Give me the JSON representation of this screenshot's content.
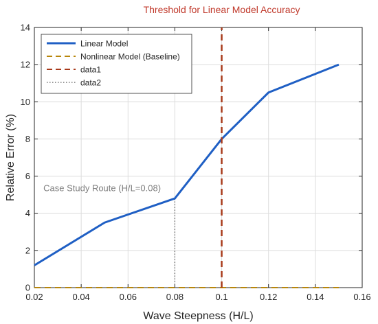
{
  "chart_data": {
    "type": "line",
    "title": "Threshold for Linear Model Accuracy",
    "xlabel": "Wave Steepness (H/L)",
    "ylabel": "Relative Error (%)",
    "xlim": [
      0.02,
      0.16
    ],
    "ylim": [
      0,
      14
    ],
    "xticks": [
      0.02,
      0.04,
      0.06,
      0.08,
      0.1,
      0.12,
      0.14,
      0.16
    ],
    "xtick_labels": [
      "0.02",
      "0.04",
      "0.06",
      "0.08",
      "0.1",
      "0.12",
      "0.14",
      "0.16"
    ],
    "yticks": [
      0,
      2,
      4,
      6,
      8,
      10,
      12,
      14
    ],
    "ytick_labels": [
      "0",
      "2",
      "4",
      "6",
      "8",
      "10",
      "12",
      "14"
    ],
    "grid": true,
    "legend_position": "top-left",
    "series": [
      {
        "name": "Linear Model",
        "style": "solid",
        "color": "#1f5fc4",
        "x": [
          0.02,
          0.05,
          0.08,
          0.1,
          0.12,
          0.15
        ],
        "y": [
          1.2,
          3.5,
          4.8,
          8.0,
          10.5,
          12.0
        ]
      },
      {
        "name": "Nonlinear Model (Baseline)",
        "style": "dashed",
        "color": "#b8860b",
        "x": [
          0.02,
          0.15
        ],
        "y": [
          0,
          0
        ]
      },
      {
        "name": "data1",
        "style": "dashed",
        "color": "#a83a1a",
        "x": [
          0.1,
          0.1
        ],
        "y": [
          0,
          14
        ]
      },
      {
        "name": "data2",
        "style": "dotted",
        "color": "#555555",
        "x": [
          0.08,
          0.08
        ],
        "y": [
          0,
          4.8
        ]
      }
    ],
    "annotations": [
      {
        "text": "Case Study Route (H/L=0.08)",
        "x": 0.0805,
        "y": 5.0,
        "color": "#7f7f7f"
      }
    ],
    "title_color": "#c0392b",
    "threshold_x": 0.1
  }
}
